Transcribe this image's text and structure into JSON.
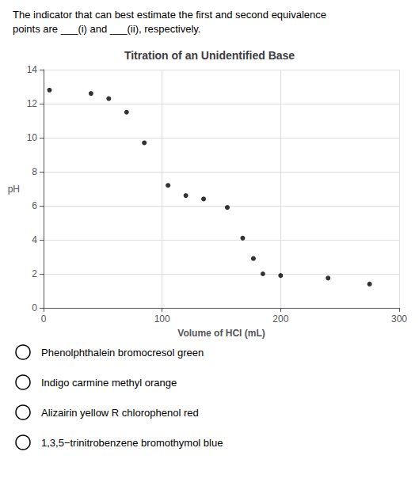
{
  "chart_data": {
    "type": "scatter",
    "title": "Titration of an Unidentified Base",
    "xlabel": "Volume of HCl (mL)",
    "ylabel": "pH",
    "annotations": [
      "The indicator that can best estimate the first and second equivalence",
      "points are ___(i) and ___(ii), respectively."
    ],
    "options": [
      "Phenolphthalein bromocresol green",
      "Indigo carmine methyl orange",
      "Alizairin yellow R chlorophenol red",
      "1,3,5−trinitrobenzene bromothymol blue"
    ],
    "x": [
      5,
      40,
      55,
      70,
      85,
      105,
      120,
      135,
      155,
      168,
      177,
      185,
      200,
      240,
      275
    ],
    "values": [
      12.8,
      12.6,
      12.3,
      11.5,
      9.7,
      7.2,
      6.6,
      6.4,
      5.9,
      4.1,
      2.9,
      2.0,
      1.9,
      1.75,
      1.4
    ],
    "color": "#000000",
    "xlim": [
      0,
      300
    ],
    "ylim": [
      0,
      14
    ],
    "xticks": [
      0,
      100,
      200,
      300
    ],
    "yticks": [
      0,
      2,
      4,
      6,
      8,
      10,
      12,
      14
    ],
    "grid": true
  }
}
